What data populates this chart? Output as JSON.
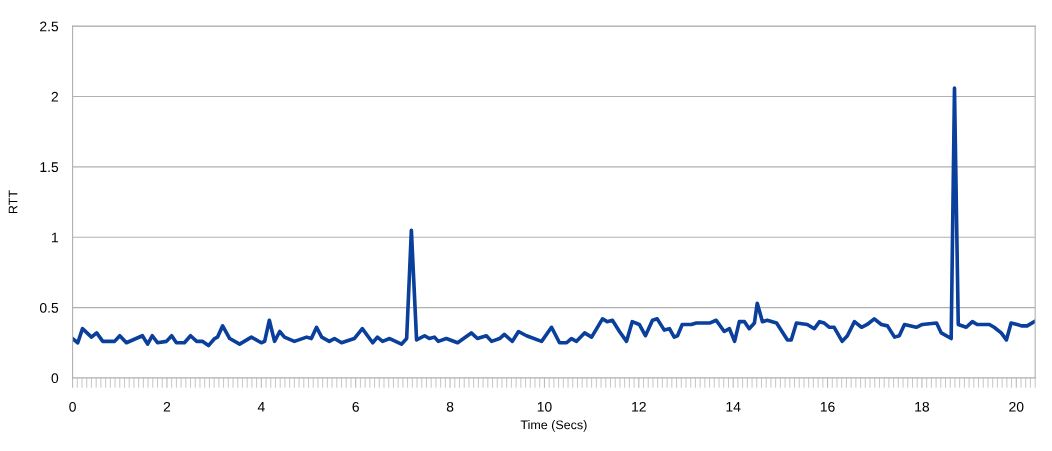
{
  "chart_data": {
    "type": "line",
    "xlabel": "Time (Secs)",
    "ylabel": "RTT",
    "xlim": [
      0,
      20.4
    ],
    "xticks": [
      0,
      2,
      4,
      6,
      8,
      10,
      12,
      14,
      16,
      18,
      20
    ],
    "ylim": [
      0,
      2.5
    ],
    "yticks": [
      0,
      0.5,
      1,
      1.5,
      2,
      2.5
    ],
    "grid": "y",
    "marker": "none",
    "line_style": "solid",
    "series": [
      {
        "color": "#0a3f9c",
        "x": [
          0.0,
          0.11,
          0.21,
          0.4,
          0.51,
          0.64,
          0.89,
          1.0,
          1.14,
          1.48,
          1.59,
          1.69,
          1.8,
          1.99,
          2.1,
          2.2,
          2.37,
          2.5,
          2.63,
          2.75,
          2.88,
          3.01,
          3.07,
          3.18,
          3.33,
          3.54,
          3.79,
          4.0,
          4.07,
          4.17,
          4.28,
          4.39,
          4.49,
          4.7,
          4.96,
          5.06,
          5.17,
          5.28,
          5.44,
          5.55,
          5.7,
          5.97,
          6.14,
          6.36,
          6.46,
          6.57,
          6.72,
          6.97,
          7.08,
          7.18,
          7.29,
          7.46,
          7.56,
          7.67,
          7.75,
          7.92,
          8.16,
          8.45,
          8.58,
          8.77,
          8.88,
          9.05,
          9.15,
          9.32,
          9.45,
          9.62,
          9.94,
          10.15,
          10.32,
          10.47,
          10.57,
          10.68,
          10.85,
          11.0,
          11.23,
          11.33,
          11.44,
          11.59,
          11.74,
          11.86,
          12.01,
          12.14,
          12.29,
          12.39,
          12.54,
          12.65,
          12.75,
          12.82,
          12.92,
          13.11,
          13.22,
          13.5,
          13.64,
          13.81,
          13.92,
          14.03,
          14.13,
          14.24,
          14.34,
          14.45,
          14.51,
          14.62,
          14.72,
          14.92,
          15.15,
          15.23,
          15.34,
          15.57,
          15.72,
          15.83,
          15.93,
          16.04,
          16.14,
          16.31,
          16.42,
          16.57,
          16.72,
          16.84,
          16.99,
          17.14,
          17.27,
          17.42,
          17.52,
          17.63,
          17.88,
          18.01,
          18.31,
          18.41,
          18.62,
          18.69,
          18.77,
          18.94,
          19.07,
          19.17,
          19.43,
          19.53,
          19.68,
          19.79,
          19.89,
          20.02,
          20.11,
          20.23,
          20.38
        ],
        "values": [
          0.28,
          0.25,
          0.35,
          0.29,
          0.32,
          0.26,
          0.26,
          0.3,
          0.25,
          0.3,
          0.24,
          0.3,
          0.25,
          0.26,
          0.3,
          0.25,
          0.25,
          0.3,
          0.26,
          0.26,
          0.23,
          0.28,
          0.29,
          0.37,
          0.28,
          0.24,
          0.29,
          0.25,
          0.26,
          0.41,
          0.26,
          0.33,
          0.29,
          0.26,
          0.29,
          0.28,
          0.36,
          0.29,
          0.26,
          0.28,
          0.25,
          0.28,
          0.35,
          0.25,
          0.29,
          0.26,
          0.28,
          0.24,
          0.28,
          1.05,
          0.27,
          0.3,
          0.28,
          0.29,
          0.26,
          0.28,
          0.25,
          0.32,
          0.28,
          0.3,
          0.26,
          0.28,
          0.31,
          0.26,
          0.33,
          0.3,
          0.26,
          0.36,
          0.25,
          0.25,
          0.28,
          0.26,
          0.32,
          0.29,
          0.42,
          0.4,
          0.41,
          0.33,
          0.26,
          0.4,
          0.38,
          0.3,
          0.41,
          0.42,
          0.34,
          0.35,
          0.29,
          0.3,
          0.38,
          0.38,
          0.39,
          0.39,
          0.41,
          0.33,
          0.35,
          0.26,
          0.4,
          0.4,
          0.35,
          0.39,
          0.53,
          0.4,
          0.41,
          0.39,
          0.27,
          0.27,
          0.39,
          0.38,
          0.35,
          0.4,
          0.39,
          0.36,
          0.36,
          0.26,
          0.3,
          0.4,
          0.36,
          0.38,
          0.42,
          0.38,
          0.37,
          0.29,
          0.3,
          0.38,
          0.36,
          0.38,
          0.39,
          0.32,
          0.28,
          2.06,
          0.38,
          0.36,
          0.4,
          0.38,
          0.38,
          0.36,
          0.32,
          0.27,
          0.39,
          0.38,
          0.37,
          0.37,
          0.4
        ]
      }
    ]
  }
}
